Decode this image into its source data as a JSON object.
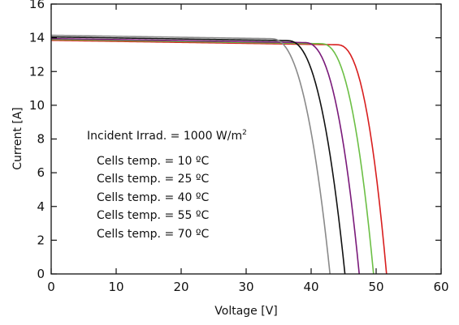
{
  "chart_data": {
    "type": "line",
    "xlabel": "Voltage [V]",
    "ylabel": "Current [A]",
    "xlim": [
      0,
      60
    ],
    "ylim": [
      0,
      16
    ],
    "xticks": [
      0,
      10,
      20,
      30,
      40,
      50,
      60
    ],
    "yticks": [
      0,
      2,
      4,
      6,
      8,
      10,
      12,
      14,
      16
    ],
    "grid": false,
    "legend": "none",
    "annotations": {
      "irradiance": "Incident Irrad. = 1000 W/m",
      "irradiance_superscript": "2",
      "temps": [
        "Cells temp. = 10 ºC",
        "Cells temp. = 25 ºC",
        "Cells temp. = 40 ºC",
        "Cells temp. = 55 ºC",
        "Cells temp. = 70 ºC"
      ]
    },
    "series": [
      {
        "color": "#d81e1e",
        "isc": 13.85,
        "voc": 51.6,
        "knee_v": 44.0
      },
      {
        "color": "#6cbf45",
        "isc": 13.9,
        "voc": 49.6,
        "knee_v": 41.5
      },
      {
        "color": "#7a1a7a",
        "isc": 13.95,
        "voc": 47.4,
        "knee_v": 39.0
      },
      {
        "color": "#111111",
        "isc": 14.05,
        "voc": 45.2,
        "knee_v": 36.3
      },
      {
        "color": "#8a8a8a",
        "isc": 14.15,
        "voc": 42.9,
        "knee_v": 33.8
      }
    ]
  }
}
